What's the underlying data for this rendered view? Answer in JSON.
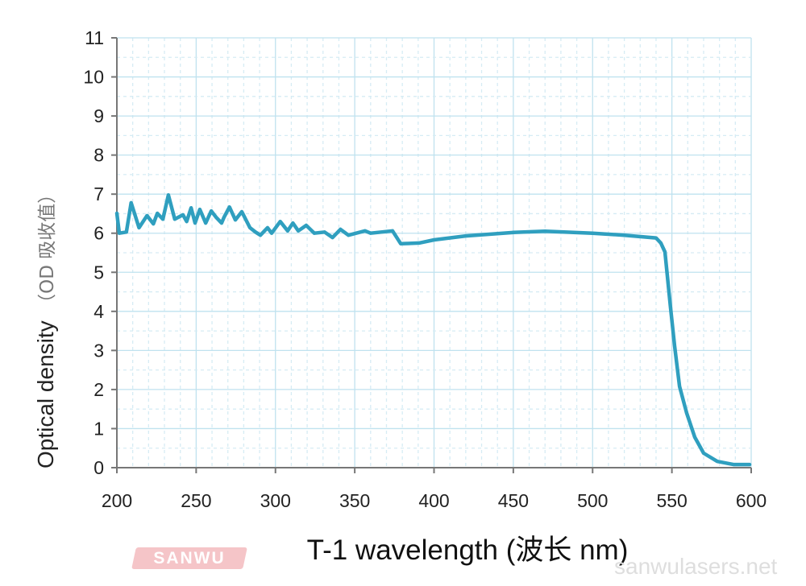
{
  "chart_data": {
    "type": "line",
    "title": "",
    "xlabel": "T-1 wavelength (波长 nm)",
    "ylabel": "Optical density",
    "ylabel_cn": "（OD 吸收值）",
    "xlim": [
      200,
      600
    ],
    "ylim": [
      0,
      11
    ],
    "xticks": [
      200,
      250,
      300,
      350,
      400,
      450,
      500,
      550,
      600
    ],
    "yticks": [
      0,
      1,
      2,
      3,
      4,
      5,
      6,
      7,
      8,
      9,
      10,
      11
    ],
    "grid": true,
    "series": [
      {
        "name": "T-1",
        "color": "#2f9fbf",
        "x": [
          200,
          201.5,
          206,
          209,
          214,
          219,
          223,
          225.5,
          229,
          232.5,
          236.5,
          241.7,
          244,
          246.8,
          249.3,
          252.3,
          256,
          259.5,
          262.5,
          266,
          267.6,
          271,
          274.7,
          278.8,
          283.9,
          287.4,
          290.5,
          295,
          297.6,
          303,
          307.7,
          311,
          314.4,
          319.4,
          324.5,
          331,
          336,
          341,
          346,
          356.5,
          360,
          366.7,
          373.8,
          379,
          390.6,
          400,
          420,
          450,
          470,
          500,
          520,
          540,
          543,
          545.6,
          549,
          551.7,
          554.8,
          559.3,
          564.4,
          570,
          578.6,
          588.8,
          599
        ],
        "y": [
          6.51,
          6.0,
          6.03,
          6.78,
          6.14,
          6.45,
          6.24,
          6.51,
          6.36,
          6.98,
          6.36,
          6.47,
          6.3,
          6.65,
          6.26,
          6.61,
          6.26,
          6.57,
          6.41,
          6.26,
          6.41,
          6.67,
          6.34,
          6.55,
          6.14,
          6.03,
          5.95,
          6.14,
          6.0,
          6.3,
          6.06,
          6.26,
          6.06,
          6.2,
          6.0,
          6.03,
          5.89,
          6.1,
          5.95,
          6.06,
          6.0,
          6.03,
          6.06,
          5.73,
          5.75,
          5.83,
          5.93,
          6.02,
          6.05,
          6.0,
          5.95,
          5.88,
          5.75,
          5.52,
          4.14,
          3.11,
          2.08,
          1.4,
          0.78,
          0.37,
          0.16,
          0.08,
          0.08
        ]
      }
    ]
  },
  "watermark": {
    "logo": "SANWU",
    "site": "sanwulasers.net"
  },
  "colors": {
    "grid_major": "#bfe2ef",
    "grid_minor": "#d6ecf4",
    "axis": "#777777"
  }
}
